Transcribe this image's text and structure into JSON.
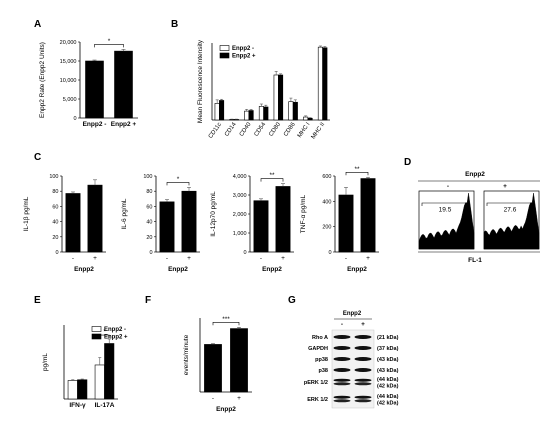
{
  "colors": {
    "plus_bar": "#000000",
    "minus_bar": "#ffffff",
    "axis": "#000000",
    "error": "#555555",
    "flow_fill": "#000000"
  },
  "panels": {
    "A": {
      "letter": "A",
      "chart_data": {
        "type": "bar",
        "ylabel": "Enpp2 Rate (Enpp2 Units)",
        "xlabel": "",
        "ylim": [
          0,
          20000
        ],
        "yticks": [
          "0",
          "5,000",
          "10,000",
          "15,000",
          "20,000"
        ],
        "categories": [
          "Enpp2 -",
          "Enpp2 +"
        ],
        "values": [
          15000,
          17600
        ],
        "errors": [
          250,
          450
        ],
        "fills": [
          "plus",
          "plus"
        ],
        "sig": [
          {
            "from": 0,
            "to": 1,
            "label": "*"
          }
        ]
      }
    },
    "B": {
      "letter": "B",
      "chart_data": {
        "type": "bar",
        "ylabel": "Mean Fluorescence Intensity",
        "xlabel": "",
        "ylim": [
          0,
          1300
        ],
        "yticks": [],
        "categories": [
          "CD11c",
          "CD14",
          "CD40",
          "CD54",
          "CD80",
          "CD86",
          "MHC I",
          "MHC II"
        ],
        "series": [
          {
            "name": "Enpp2 -",
            "fill": "minus",
            "values": [
              280,
              10,
              150,
              230,
              760,
              310,
              50,
              1230
            ],
            "errors": [
              60,
              5,
              30,
              40,
              60,
              60,
              20,
              20
            ]
          },
          {
            "name": "Enpp2 +",
            "fill": "plus",
            "values": [
              330,
              10,
              160,
              220,
              760,
              300,
              30,
              1220
            ],
            "errors": [
              20,
              5,
              20,
              30,
              20,
              40,
              10,
              20
            ]
          }
        ],
        "legend_position": "top-left"
      }
    },
    "C1": {
      "letter": "C",
      "chart_data": {
        "type": "bar",
        "ylabel": "IL-1β pg/mL",
        "xlabel": "Enpp2",
        "ylim": [
          0,
          100
        ],
        "yticks": [
          "0",
          "20",
          "40",
          "60",
          "80",
          "100"
        ],
        "categories": [
          "-",
          "+"
        ],
        "values": [
          77,
          88
        ],
        "errors": [
          2,
          7
        ],
        "fills": [
          "plus",
          "plus"
        ],
        "sig": []
      }
    },
    "C2": {
      "letter": "",
      "chart_data": {
        "type": "bar",
        "ylabel": "IL-6 pg/mL",
        "xlabel": "Enpp2",
        "ylim": [
          0,
          100
        ],
        "yticks": [
          "0",
          "20",
          "40",
          "60",
          "80",
          "100"
        ],
        "categories": [
          "-",
          "+"
        ],
        "values": [
          66,
          80
        ],
        "errors": [
          3,
          5
        ],
        "fills": [
          "plus",
          "plus"
        ],
        "sig": [
          {
            "from": 0,
            "to": 1,
            "label": "*"
          }
        ]
      }
    },
    "C3": {
      "letter": "",
      "chart_data": {
        "type": "bar",
        "ylabel": "IL-12p70 pg/mL",
        "xlabel": "Enpp2",
        "ylim": [
          0,
          4000
        ],
        "yticks": [
          "0",
          "1,000",
          "2,000",
          "3,000",
          "4,000"
        ],
        "categories": [
          "-",
          "+"
        ],
        "values": [
          2700,
          3450
        ],
        "errors": [
          100,
          150
        ],
        "fills": [
          "plus",
          "plus"
        ],
        "sig": [
          {
            "from": 0,
            "to": 1,
            "label": "**"
          }
        ]
      }
    },
    "C4": {
      "letter": "",
      "chart_data": {
        "type": "bar",
        "ylabel": "TNF-α pg/mL",
        "xlabel": "Enpp2",
        "ylim": [
          0,
          600
        ],
        "yticks": [
          "0",
          "200",
          "400",
          "600"
        ],
        "categories": [
          "-",
          "+"
        ],
        "values": [
          450,
          580
        ],
        "errors": [
          60,
          10
        ],
        "fills": [
          "plus",
          "plus"
        ],
        "sig": [
          {
            "from": 0,
            "to": 1,
            "label": "**"
          }
        ]
      }
    },
    "D": {
      "letter": "D",
      "title": "Enpp2",
      "minus_label": "-",
      "plus_label": "+",
      "gate_minus": "19.5",
      "gate_plus": "27.6",
      "xlabel": "FL-1"
    },
    "E": {
      "letter": "E",
      "chart_data": {
        "type": "bar",
        "ylabel": "pg/mL",
        "xlabel": "",
        "ylim": [
          0,
          1000
        ],
        "yticks": [],
        "categories": [
          "IFN-γ",
          "IL-17A"
        ],
        "series": [
          {
            "name": "Enpp2 -",
            "fill": "minus",
            "values": [
              250,
              460
            ],
            "errors": [
              10,
              100
            ]
          },
          {
            "name": "Enpp2 +",
            "fill": "plus",
            "values": [
              260,
              750
            ],
            "errors": [
              10,
              60
            ]
          }
        ],
        "sig": [
          {
            "category": 1,
            "label": "*"
          }
        ],
        "legend_position": "top-right"
      }
    },
    "F": {
      "letter": "F",
      "chart_data": {
        "type": "bar",
        "ylabel": "events/minute",
        "xlabel": "Enpp2",
        "ylim": [
          0,
          7000
        ],
        "yticks": [],
        "categories": [
          "-",
          "+"
        ],
        "values": [
          4500,
          6000
        ],
        "errors": [
          80,
          120
        ],
        "fills": [
          "plus",
          "plus"
        ],
        "sig": [
          {
            "from": 0,
            "to": 1,
            "label": "***"
          }
        ]
      }
    },
    "G": {
      "letter": "G",
      "title": "Enpp2",
      "lane_minus": "-",
      "lane_plus": "+",
      "rows": [
        {
          "label": "Rho A",
          "kda": [
            "(21 kDa)"
          ]
        },
        {
          "label": "GAPDH",
          "kda": [
            "(37 kDa)"
          ]
        },
        {
          "label": "pp38",
          "kda": [
            "(43 kDa)"
          ]
        },
        {
          "label": "p38",
          "kda": [
            "(43 kDa)"
          ]
        },
        {
          "label": "pERK 1/2",
          "kda": [
            "(44 kDa)",
            "(42 kDa)"
          ]
        },
        {
          "label": "ERK 1/2",
          "kda": [
            "(44 kDa)",
            "(42 kDa)"
          ]
        }
      ]
    }
  }
}
